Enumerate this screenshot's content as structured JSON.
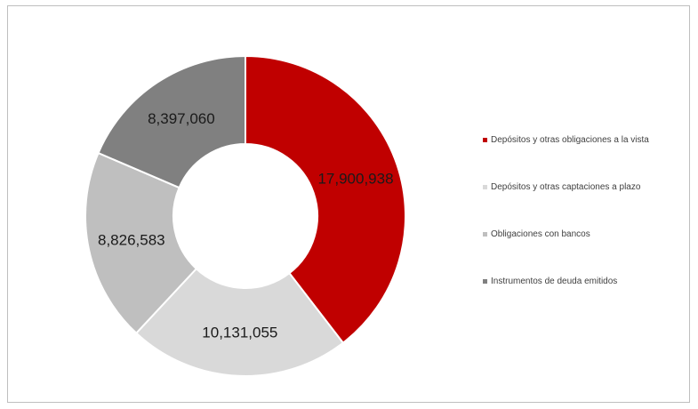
{
  "chart_data": {
    "type": "donut",
    "categories": [
      "Depósitos y otras obligaciones a la vista",
      "Depósitos y otras captaciones a plazo",
      "Obligaciones con bancos",
      "Instrumentos de deuda emitidos"
    ],
    "values": [
      17900938,
      10131055,
      8826583,
      8397060
    ],
    "labels": [
      "17,900,938",
      "10,131,055",
      "8,826,583",
      "8,397,060"
    ],
    "colors": [
      "#c00000",
      "#d9d9d9",
      "#bfbfbf",
      "#808080"
    ],
    "legend_position": "right",
    "start_angle": "top",
    "direction": "clockwise"
  }
}
